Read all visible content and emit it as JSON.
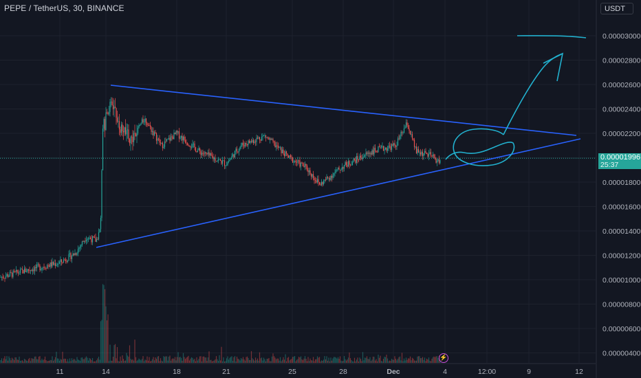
{
  "header": {
    "symbol_title": "PEPE / TetherUS, 30, BINANCE",
    "currency": "USDT"
  },
  "price_label": {
    "price": "0.00001996",
    "countdown": "25:37"
  },
  "colors": {
    "background": "#131722",
    "grid": "#1e222d",
    "up": "#26a69a",
    "down": "#ef5350",
    "trendline": "#2962ff",
    "drawing": "#22b1cf",
    "last_price": "#26a69a"
  },
  "chart_data": {
    "type": "candlestick",
    "title": "PEPE / TetherUS, 30, BINANCE",
    "y_axis": {
      "ticks": [
        "0.00003000",
        "0.00002800",
        "0.00002600",
        "0.00002400",
        "0.00002200",
        "0.00002000",
        "0.00001800",
        "0.00001600",
        "0.00001400",
        "0.00001200",
        "0.00001000",
        "0.00000800",
        "0.00000600",
        "0.00000400"
      ],
      "range": [
        3.7e-06,
        3.09e-05
      ]
    },
    "x_axis": {
      "ticks": [
        "11",
        "14",
        "18",
        "21",
        "25",
        "28",
        "Dec",
        "4",
        "12:00",
        "9",
        "12"
      ]
    },
    "approx_price_path": [
      {
        "x": "9 Nov",
        "price": 1.03e-05
      },
      {
        "x": "11 Nov",
        "price": 1.13e-05
      },
      {
        "x": "12 Nov",
        "price": 1.25e-05
      },
      {
        "x": "13 Nov",
        "price": 1.32e-05
      },
      {
        "x": "13 Nov late",
        "price": 1.35e-05
      },
      {
        "x": "14 Nov",
        "price": 2.5e-05
      },
      {
        "x": "15 Nov",
        "price": 2.25e-05
      },
      {
        "x": "16 Nov",
        "price": 2.33e-05
      },
      {
        "x": "18 Nov",
        "price": 2.15e-05
      },
      {
        "x": "21 Nov",
        "price": 1.95e-05
      },
      {
        "x": "23 Nov",
        "price": 2.1e-05
      },
      {
        "x": "25 Nov",
        "price": 2e-05
      },
      {
        "x": "26 Nov",
        "price": 1.8e-05
      },
      {
        "x": "28 Nov",
        "price": 1.95e-05
      },
      {
        "x": "30 Nov",
        "price": 2.08e-05
      },
      {
        "x": "2 Dec",
        "price": 2.3e-05
      },
      {
        "x": "3 Dec",
        "price": 2.05e-05
      },
      {
        "x": "4 Dec",
        "price": 2e-05
      }
    ],
    "volume": "histogram at bottom with a large spike on 14 Nov",
    "last_price": 1.996e-05,
    "annotations": [
      "symmetrical triangle (two converging trendlines)",
      "circled apex",
      "hand-drawn arrow upward",
      "horizontal target line near 0.00003000"
    ],
    "grid": true
  }
}
